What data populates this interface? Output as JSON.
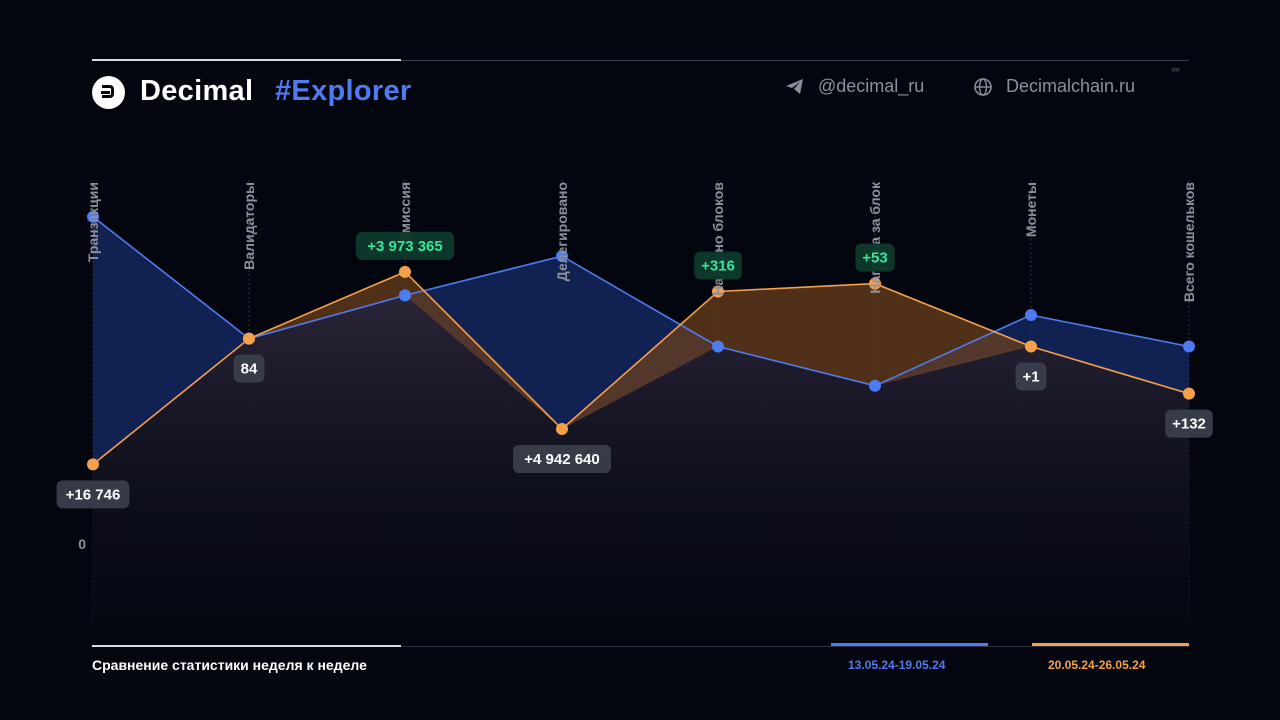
{
  "brand": {
    "name": "Decimal",
    "accent": "#Explorer"
  },
  "social": {
    "telegram": "@decimal_ru",
    "website": "Decimalchain.ru"
  },
  "chart_data": {
    "type": "line",
    "title": "Сравнение статистики неделя к неделе",
    "categories": [
      "Транзакции",
      "Валидаторы",
      "Эмиссия",
      "Делегировано",
      "Найдено блоков",
      "Награда за блок",
      "Монеты",
      "Всего кошельков"
    ],
    "ylabel": "",
    "zero_label": "0",
    "grid": true,
    "legend_position": "bottom-right",
    "series": [
      {
        "name": "13.05.24-19.05.24",
        "color": "#4f7bf0",
        "values": [
          0.83,
          0.52,
          0.63,
          0.73,
          0.5,
          0.4,
          0.58,
          0.5
        ]
      },
      {
        "name": "20.05.24-26.05.24",
        "color": "#f5a04a",
        "values": [
          0.2,
          0.52,
          0.69,
          0.29,
          0.64,
          0.66,
          0.5,
          0.38
        ]
      }
    ],
    "change_labels": [
      {
        "text": "+16 746",
        "positive": false
      },
      {
        "text": "84",
        "positive": false
      },
      {
        "text": "+3 973 365",
        "positive": true
      },
      {
        "text": "+4 942 640",
        "positive": false
      },
      {
        "text": "+316",
        "positive": true
      },
      {
        "text": "+53",
        "positive": true
      },
      {
        "text": "+1",
        "positive": false
      },
      {
        "text": "+132",
        "positive": false
      }
    ]
  },
  "colors": {
    "background": "#04060f",
    "blue": "#4f7bf0",
    "orange": "#f5a04a",
    "positive_text": "#3ee39a"
  }
}
